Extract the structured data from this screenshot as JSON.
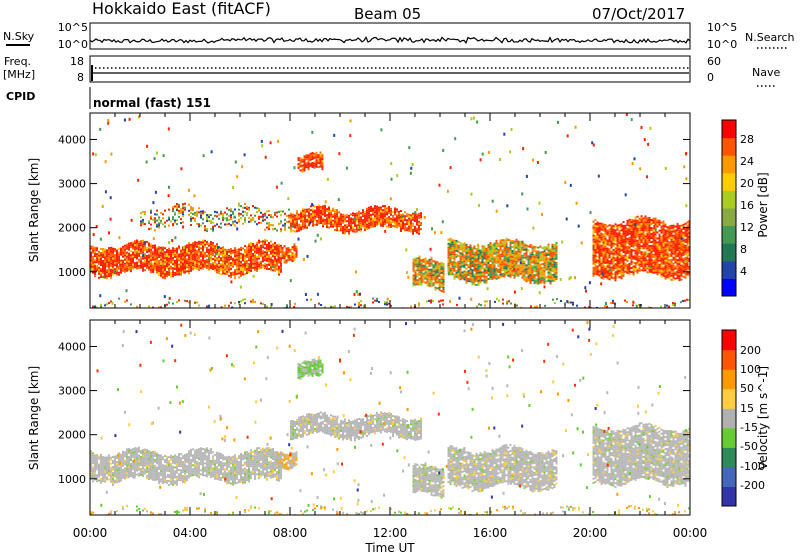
{
  "header": {
    "title": "Hokkaido East (fitACF)",
    "beam": "Beam 05",
    "date": "07/Oct/2017"
  },
  "top_panels": {
    "nsky_label": "N.Sky",
    "nsearch_label": "N.Search",
    "freq_label": "Freq.",
    "freq_unit": "[MHz]",
    "nave_label": "Nave",
    "cpid_label": "CPID",
    "cpid_text": "normal (fast) 151",
    "nsky_ticks": [
      "10^5",
      "10^0"
    ],
    "nsearch_ticks": [
      "10^5",
      "10^0"
    ],
    "freq_ticks": [
      "18",
      "8"
    ],
    "nave_ticks": [
      "60",
      "0"
    ]
  },
  "time_axis": {
    "label": "Time UT",
    "ticks": [
      "00:00",
      "04:00",
      "08:00",
      "12:00",
      "16:00",
      "20:00",
      "00:00"
    ]
  },
  "chart_data": [
    {
      "type": "heatmap",
      "name": "power",
      "ylabel": "Slant Range [km]",
      "yticks": [
        1000,
        2000,
        3000,
        4000
      ],
      "ylim": [
        180,
        4600
      ],
      "xlim_hours": [
        0,
        24
      ],
      "colorbar_label": "Power [dB]",
      "colorbar_ticks": [
        "4",
        "8",
        "12",
        "16",
        "20",
        "24",
        "28"
      ],
      "colorbar_colors": [
        "#0000ff",
        "#2244aa",
        "#227755",
        "#449955",
        "#88aa44",
        "#aacc22",
        "#ffcc00",
        "#ff9900",
        "#ff5500",
        "#ff0000"
      ],
      "regions": [
        {
          "t0": 0.0,
          "t1": 7.7,
          "r0": 950,
          "r1": 1650,
          "kind": "strong"
        },
        {
          "t0": 7.5,
          "t1": 8.3,
          "r0": 1300,
          "r1": 1700,
          "kind": "strong"
        },
        {
          "t0": 8.0,
          "t1": 13.3,
          "r0": 1950,
          "r1": 2450,
          "kind": "strong"
        },
        {
          "t0": 8.3,
          "t1": 9.3,
          "r0": 3250,
          "r1": 3650,
          "kind": "strong"
        },
        {
          "t0": 12.9,
          "t1": 14.2,
          "r0": 600,
          "r1": 1300,
          "kind": "mid"
        },
        {
          "t0": 14.3,
          "t1": 18.7,
          "r0": 800,
          "r1": 1700,
          "kind": "mid"
        },
        {
          "t0": 20.1,
          "t1": 24.0,
          "r0": 900,
          "r1": 2200,
          "kind": "strong"
        },
        {
          "t0": 2.0,
          "t1": 8.0,
          "r0": 2000,
          "r1": 2500,
          "kind": "weak"
        },
        {
          "t0": 0.0,
          "t1": 24.0,
          "r0": 200,
          "r1": 330,
          "kind": "weak"
        }
      ]
    },
    {
      "type": "heatmap",
      "name": "velocity",
      "ylabel": "Slant Range [km]",
      "yticks": [
        1000,
        2000,
        3000,
        4000
      ],
      "ylim": [
        180,
        4600
      ],
      "xlim_hours": [
        0,
        24
      ],
      "colorbar_label": "Velocity [m s^-1]",
      "colorbar_ticks": [
        "200",
        "100",
        "50",
        "15",
        "-15",
        "-50",
        "-100",
        "-200"
      ],
      "colorbar_colors": [
        "#3333aa",
        "#4466bb",
        "#2e8b57",
        "#66cc33",
        "#b0b0b0",
        "#ffcc44",
        "#ff9900",
        "#ff5500",
        "#ff0000"
      ],
      "regions": [
        {
          "t0": 0.0,
          "t1": 7.7,
          "r0": 950,
          "r1": 1650,
          "kind": "gray"
        },
        {
          "t0": 7.5,
          "t1": 8.3,
          "r0": 1300,
          "r1": 1700,
          "kind": "orange"
        },
        {
          "t0": 8.0,
          "t1": 13.3,
          "r0": 1950,
          "r1": 2450,
          "kind": "gray"
        },
        {
          "t0": 8.3,
          "t1": 9.3,
          "r0": 3250,
          "r1": 3650,
          "kind": "green"
        },
        {
          "t0": 12.9,
          "t1": 14.2,
          "r0": 600,
          "r1": 1300,
          "kind": "gray"
        },
        {
          "t0": 14.3,
          "t1": 18.7,
          "r0": 800,
          "r1": 1700,
          "kind": "gray"
        },
        {
          "t0": 20.1,
          "t1": 24.0,
          "r0": 900,
          "r1": 2200,
          "kind": "gray"
        },
        {
          "t0": 0.0,
          "t1": 24.0,
          "r0": 200,
          "r1": 330,
          "kind": "mixed"
        }
      ]
    }
  ]
}
